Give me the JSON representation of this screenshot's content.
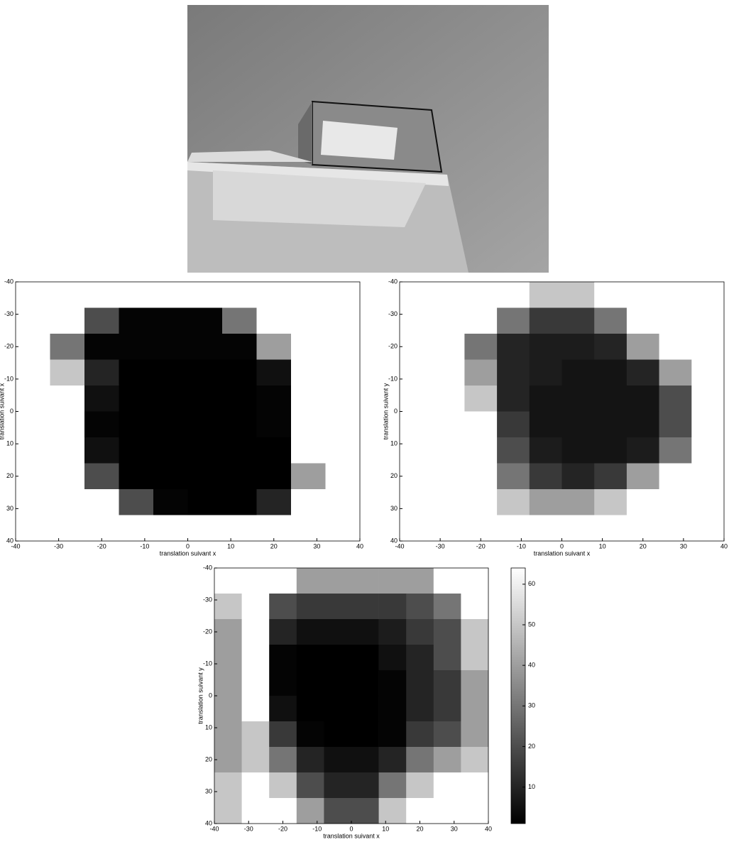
{
  "chart_data": [
    {
      "type": "heatmap",
      "xlabel": "translation suivant x",
      "ylabel": "translation suivant x",
      "x": [
        -36,
        -28,
        -20,
        -12,
        -4,
        4,
        12,
        20,
        28,
        36
      ],
      "y": [
        -36,
        -28,
        -20,
        -12,
        -4,
        4,
        12,
        20,
        28,
        36
      ],
      "z": [
        [
          64,
          64,
          64,
          64,
          64,
          64,
          64,
          64,
          64,
          64
        ],
        [
          64,
          64,
          20,
          2,
          2,
          2,
          30,
          64,
          64,
          64
        ],
        [
          64,
          30,
          2,
          2,
          2,
          2,
          2,
          40,
          64,
          64
        ],
        [
          64,
          50,
          10,
          1,
          1,
          1,
          1,
          5,
          64,
          64
        ],
        [
          64,
          64,
          5,
          1,
          1,
          1,
          1,
          2,
          64,
          64
        ],
        [
          64,
          64,
          2,
          1,
          1,
          1,
          1,
          2,
          64,
          64
        ],
        [
          64,
          64,
          5,
          1,
          1,
          1,
          1,
          1,
          64,
          64
        ],
        [
          64,
          64,
          20,
          1,
          1,
          1,
          1,
          1,
          40,
          64
        ],
        [
          64,
          64,
          64,
          20,
          2,
          1,
          1,
          10,
          64,
          64
        ],
        [
          64,
          64,
          64,
          64,
          64,
          64,
          64,
          64,
          64,
          64
        ]
      ],
      "xlim": [
        -40,
        40
      ],
      "ylim": [
        -40,
        40
      ],
      "y_inverted": true,
      "colormap": "gray",
      "clim": [
        1,
        64
      ],
      "xticks": [
        -40,
        -30,
        -20,
        -10,
        0,
        10,
        20,
        30,
        40
      ],
      "yticks": [
        -40,
        -30,
        -20,
        -10,
        0,
        10,
        20,
        30,
        40
      ]
    },
    {
      "type": "heatmap",
      "xlabel": "translation suivant x",
      "ylabel": "translation suivant y",
      "x": [
        -36,
        -28,
        -20,
        -12,
        -4,
        4,
        12,
        20,
        28,
        36
      ],
      "y": [
        -36,
        -28,
        -20,
        -12,
        -4,
        4,
        12,
        20,
        28,
        36
      ],
      "z": [
        [
          64,
          64,
          64,
          64,
          50,
          50,
          64,
          64,
          64,
          64
        ],
        [
          64,
          64,
          64,
          30,
          15,
          15,
          30,
          64,
          64,
          64
        ],
        [
          64,
          64,
          30,
          10,
          8,
          8,
          10,
          40,
          64,
          64
        ],
        [
          64,
          64,
          40,
          10,
          8,
          6,
          6,
          10,
          40,
          64
        ],
        [
          64,
          64,
          50,
          10,
          6,
          6,
          6,
          6,
          20,
          64
        ],
        [
          64,
          64,
          64,
          15,
          6,
          6,
          6,
          6,
          20,
          64
        ],
        [
          64,
          64,
          64,
          20,
          8,
          6,
          6,
          8,
          30,
          64
        ],
        [
          64,
          64,
          64,
          30,
          15,
          10,
          15,
          40,
          64,
          64
        ],
        [
          64,
          64,
          64,
          50,
          40,
          40,
          50,
          64,
          64,
          64
        ],
        [
          64,
          64,
          64,
          64,
          64,
          64,
          64,
          64,
          64,
          64
        ]
      ],
      "xlim": [
        -40,
        40
      ],
      "ylim": [
        -40,
        40
      ],
      "y_inverted": true,
      "colormap": "gray",
      "clim": [
        1,
        64
      ],
      "xticks": [
        -40,
        -30,
        -20,
        -10,
        0,
        10,
        20,
        30,
        40
      ],
      "yticks": [
        -40,
        -30,
        -20,
        -10,
        0,
        10,
        20,
        30,
        40
      ]
    },
    {
      "type": "heatmap",
      "xlabel": "translation suivant x",
      "ylabel": "translation suivant y",
      "x": [
        -36,
        -28,
        -20,
        -12,
        -4,
        4,
        12,
        20,
        28,
        36
      ],
      "y": [
        -36,
        -28,
        -20,
        -12,
        -4,
        4,
        12,
        20,
        28,
        36
      ],
      "z": [
        [
          64,
          64,
          64,
          40,
          40,
          40,
          40,
          40,
          64,
          64
        ],
        [
          50,
          64,
          20,
          15,
          15,
          15,
          15,
          20,
          30,
          64
        ],
        [
          40,
          64,
          10,
          5,
          5,
          5,
          8,
          15,
          20,
          50
        ],
        [
          40,
          64,
          2,
          1,
          1,
          1,
          5,
          10,
          20,
          50
        ],
        [
          40,
          64,
          2,
          1,
          1,
          1,
          2,
          10,
          15,
          40
        ],
        [
          40,
          64,
          5,
          1,
          1,
          1,
          2,
          10,
          15,
          40
        ],
        [
          40,
          50,
          15,
          2,
          1,
          1,
          2,
          15,
          20,
          40
        ],
        [
          40,
          50,
          30,
          10,
          5,
          5,
          10,
          30,
          40,
          50
        ],
        [
          50,
          64,
          50,
          20,
          10,
          10,
          30,
          50,
          64,
          64
        ],
        [
          50,
          64,
          64,
          40,
          20,
          20,
          50,
          64,
          64,
          64
        ]
      ],
      "xlim": [
        -40,
        40
      ],
      "ylim": [
        -40,
        40
      ],
      "y_inverted": true,
      "colormap": "gray",
      "clim": [
        1,
        64
      ],
      "xticks": [
        -40,
        -30,
        -20,
        -10,
        0,
        10,
        20,
        30,
        40
      ],
      "yticks": [
        -40,
        -30,
        -20,
        -10,
        0,
        10,
        20,
        30,
        40
      ],
      "colorbar_ticks": [
        10,
        20,
        30,
        40,
        50,
        60
      ]
    }
  ]
}
